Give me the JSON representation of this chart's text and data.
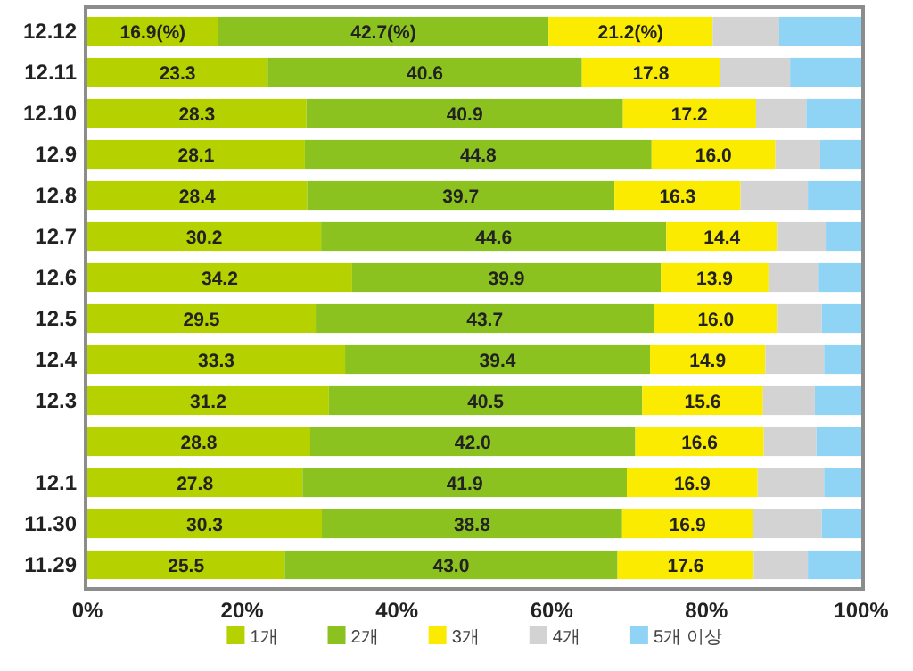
{
  "chart_data": {
    "type": "bar",
    "orientation": "horizontal",
    "stacked": true,
    "categories": [
      "12.12",
      "12.11",
      "12.10",
      "12.9",
      "12.8",
      "12.7",
      "12.6",
      "12.5",
      "12.4",
      "12.3",
      null,
      "12.1",
      "11.30",
      "11.29"
    ],
    "series": [
      {
        "name": "1개",
        "color": "#b5d100",
        "values": [
          16.9,
          23.3,
          28.3,
          28.1,
          28.4,
          30.2,
          34.2,
          29.5,
          33.3,
          31.2,
          28.8,
          27.8,
          30.3,
          25.5
        ],
        "value_labels": [
          "16.9(%)",
          "23.3",
          "28.3",
          "28.1",
          "28.4",
          "30.2",
          "34.2",
          "29.5",
          "33.3",
          "31.2",
          "28.8",
          "27.8",
          "30.3",
          "25.5"
        ]
      },
      {
        "name": "2개",
        "color": "#8cc220",
        "values": [
          42.7,
          40.6,
          40.9,
          44.8,
          39.7,
          44.6,
          39.9,
          43.7,
          39.4,
          40.5,
          42.0,
          41.9,
          38.8,
          43.0
        ],
        "value_labels": [
          "42.7(%)",
          "40.6",
          "40.9",
          "44.8",
          "39.7",
          "44.6",
          "39.9",
          "43.7",
          "39.4",
          "40.5",
          "42.0",
          "41.9",
          "38.8",
          "43.0"
        ]
      },
      {
        "name": "3개",
        "color": "#faeb00",
        "values": [
          21.2,
          17.8,
          17.2,
          16.0,
          16.3,
          14.4,
          13.9,
          16.0,
          14.9,
          15.6,
          16.6,
          16.9,
          16.9,
          17.6
        ],
        "value_labels": [
          "21.2(%)",
          "17.8",
          "17.2",
          "16.0",
          "16.3",
          "14.4",
          "13.9",
          "16.0",
          "14.9",
          "15.6",
          "16.6",
          "16.9",
          "16.9",
          "17.6"
        ]
      },
      {
        "name": "4개",
        "color": "#d3d3d3",
        "values": [
          8.6,
          9.1,
          6.5,
          5.8,
          8.7,
          6.2,
          6.5,
          5.7,
          7.6,
          6.7,
          6.8,
          8.6,
          8.9,
          7.0
        ]
      },
      {
        "name": "5개 이상",
        "color": "#8fd3f5",
        "values": [
          10.6,
          9.2,
          7.1,
          5.3,
          6.9,
          4.6,
          5.5,
          5.1,
          4.8,
          6.0,
          5.8,
          4.8,
          5.1,
          6.9
        ]
      }
    ],
    "xlim": [
      0,
      100
    ],
    "xticks": [
      {
        "value": 0,
        "label": "0%"
      },
      {
        "value": 20,
        "label": "20%"
      },
      {
        "value": 40,
        "label": "40%"
      },
      {
        "value": 60,
        "label": "60%"
      },
      {
        "value": 80,
        "label": "80%"
      },
      {
        "value": 100,
        "label": "100%"
      }
    ],
    "legend": "bottom"
  }
}
